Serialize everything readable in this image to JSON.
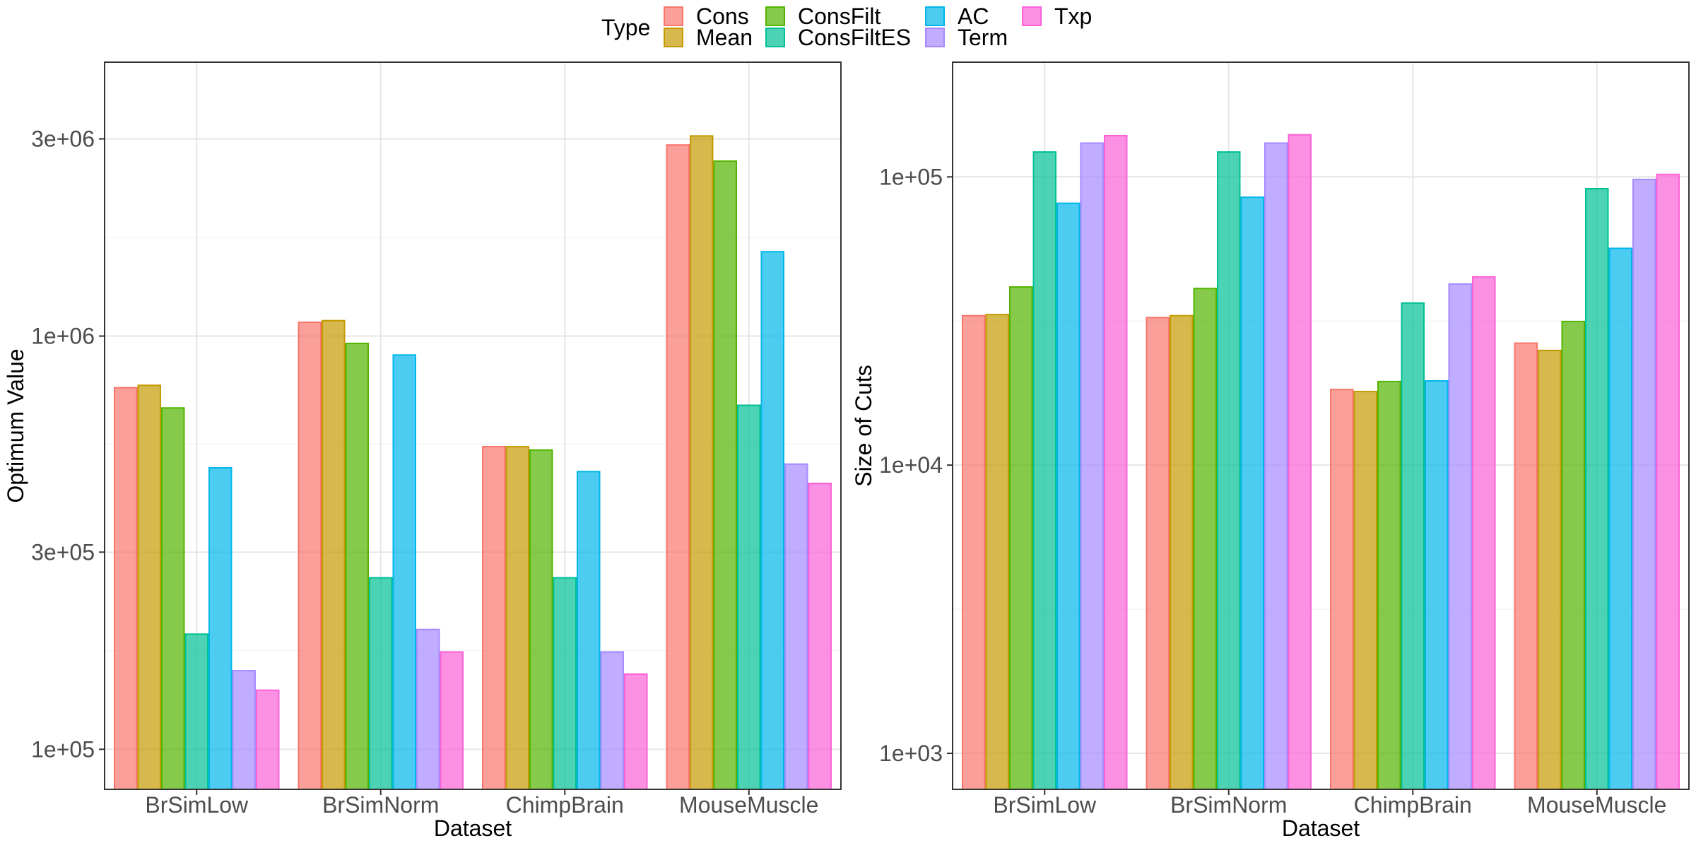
{
  "legend": {
    "title": "Type",
    "entries": [
      {
        "name": "Cons",
        "color": "#F8766D"
      },
      {
        "name": "Mean",
        "color": "#C49A00"
      },
      {
        "name": "ConsFilt",
        "color": "#53B400"
      },
      {
        "name": "ConsFiltES",
        "color": "#00C094"
      },
      {
        "name": "AC",
        "color": "#00B6EB"
      },
      {
        "name": "Term",
        "color": "#A58AFF"
      },
      {
        "name": "Txp",
        "color": "#FB61D7"
      }
    ],
    "placement": "top-center"
  },
  "chart_data": [
    {
      "type": "bar",
      "scale": "log10",
      "grid": true,
      "xlabel": "Dataset",
      "ylabel": "Optimum Value",
      "categories": [
        "BrSimLow",
        "BrSimNorm",
        "ChimpBrain",
        "MouseMuscle"
      ],
      "ylim": [
        80000,
        4600000
      ],
      "yticks": [
        100000,
        300000,
        1000000,
        3000000
      ],
      "ytick_labels": [
        "1e+05",
        "3e+05",
        "1e+06",
        "3e+06"
      ],
      "series": [
        {
          "name": "Cons",
          "values": [
            750000,
            1080000,
            540000,
            2900000
          ]
        },
        {
          "name": "Mean",
          "values": [
            760000,
            1090000,
            540000,
            3050000
          ]
        },
        {
          "name": "ConsFilt",
          "values": [
            670000,
            960000,
            530000,
            2650000
          ]
        },
        {
          "name": "ConsFiltES",
          "values": [
            190000,
            260000,
            260000,
            680000
          ]
        },
        {
          "name": "AC",
          "values": [
            480000,
            900000,
            470000,
            1600000
          ]
        },
        {
          "name": "Term",
          "values": [
            155000,
            195000,
            172000,
            490000
          ]
        },
        {
          "name": "Txp",
          "values": [
            139000,
            172000,
            152000,
            440000
          ]
        }
      ]
    },
    {
      "type": "bar",
      "scale": "log10",
      "grid": true,
      "xlabel": "Dataset",
      "ylabel": "Size of Cuts",
      "categories": [
        "BrSimLow",
        "BrSimNorm",
        "ChimpBrain",
        "MouseMuscle"
      ],
      "ylim": [
        750,
        250000
      ],
      "yticks": [
        1000,
        10000,
        100000
      ],
      "ytick_labels": [
        "1e+03",
        "1e+04",
        "1e+05"
      ],
      "series": [
        {
          "name": "Cons",
          "values": [
            33000,
            32500,
            18300,
            26500
          ]
        },
        {
          "name": "Mean",
          "values": [
            33300,
            33000,
            18000,
            25000
          ]
        },
        {
          "name": "ConsFilt",
          "values": [
            41500,
            41000,
            19500,
            31500
          ]
        },
        {
          "name": "ConsFiltES",
          "values": [
            122000,
            122000,
            36500,
            91000
          ]
        },
        {
          "name": "AC",
          "values": [
            81000,
            85000,
            19600,
            56500
          ]
        },
        {
          "name": "Term",
          "values": [
            131000,
            131000,
            42500,
            98000
          ]
        },
        {
          "name": "Txp",
          "values": [
            139000,
            140000,
            45000,
            102000
          ]
        }
      ]
    }
  ]
}
